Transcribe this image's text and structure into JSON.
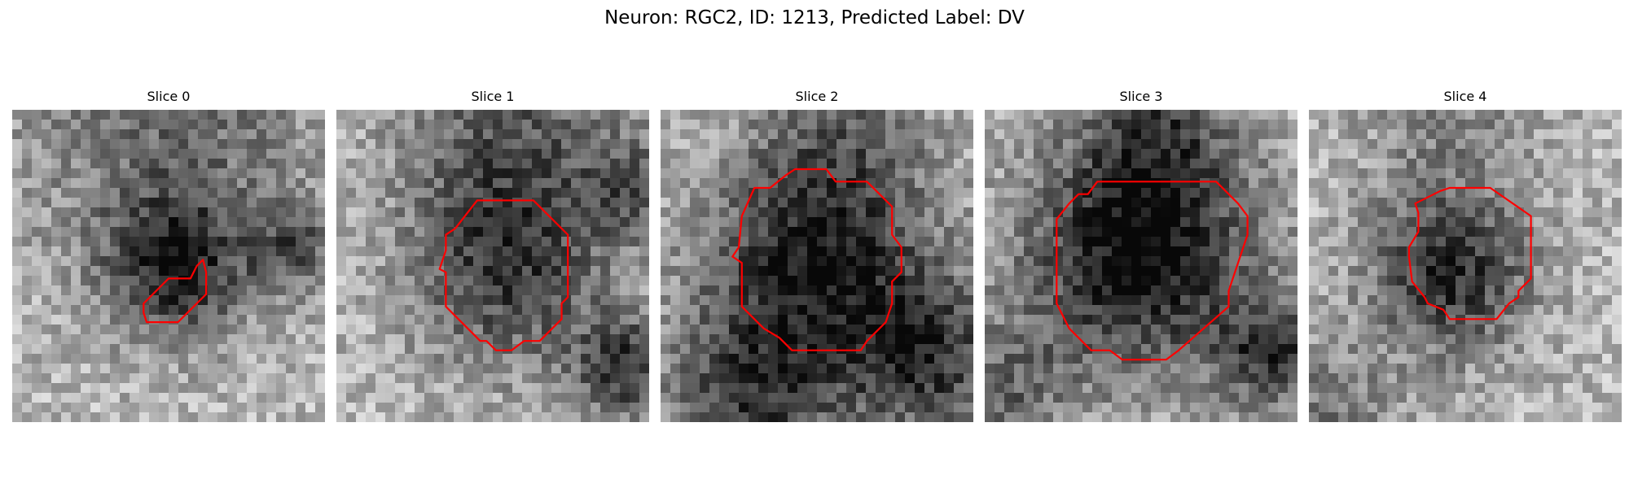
{
  "figure": {
    "suptitle": "Neuron: RGC2, ID: 1213, Predicted Label: DV"
  },
  "panels": [
    {
      "title": "Slice 0",
      "seed": 11,
      "blobs": [
        [
          0.52,
          0.5,
          0.16,
          0.55
        ],
        [
          0.9,
          0.45,
          0.1,
          0.35
        ],
        [
          0.5,
          0.02,
          0.35,
          0.3
        ]
      ],
      "contour": [
        [
          0.42,
          0.62
        ],
        [
          0.5,
          0.54
        ],
        [
          0.57,
          0.54
        ],
        [
          0.59,
          0.5
        ],
        [
          0.61,
          0.48
        ],
        [
          0.62,
          0.52
        ],
        [
          0.62,
          0.59
        ],
        [
          0.53,
          0.68
        ],
        [
          0.43,
          0.68
        ],
        [
          0.42,
          0.65
        ]
      ]
    },
    {
      "title": "Slice 1",
      "seed": 23,
      "blobs": [
        [
          0.55,
          0.52,
          0.22,
          0.45
        ],
        [
          0.55,
          0.08,
          0.25,
          0.35
        ],
        [
          0.93,
          0.83,
          0.12,
          0.5
        ],
        [
          0.95,
          0.25,
          0.12,
          0.3
        ]
      ],
      "contour": [
        [
          0.38,
          0.38
        ],
        [
          0.45,
          0.29
        ],
        [
          0.63,
          0.29
        ],
        [
          0.74,
          0.4
        ],
        [
          0.74,
          0.6
        ],
        [
          0.72,
          0.62
        ],
        [
          0.72,
          0.67
        ],
        [
          0.65,
          0.74
        ],
        [
          0.6,
          0.74
        ],
        [
          0.56,
          0.77
        ],
        [
          0.51,
          0.77
        ],
        [
          0.48,
          0.74
        ],
        [
          0.46,
          0.74
        ],
        [
          0.35,
          0.63
        ],
        [
          0.35,
          0.52
        ],
        [
          0.33,
          0.51
        ],
        [
          0.35,
          0.45
        ],
        [
          0.35,
          0.4
        ]
      ]
    },
    {
      "title": "Slice 2",
      "seed": 37,
      "blobs": [
        [
          0.5,
          0.48,
          0.25,
          0.6
        ],
        [
          0.85,
          0.8,
          0.18,
          0.5
        ],
        [
          0.28,
          0.92,
          0.2,
          0.45
        ],
        [
          0.6,
          0.05,
          0.2,
          0.25
        ]
      ],
      "contour": [
        [
          0.3,
          0.25
        ],
        [
          0.35,
          0.25
        ],
        [
          0.4,
          0.21
        ],
        [
          0.43,
          0.19
        ],
        [
          0.53,
          0.19
        ],
        [
          0.56,
          0.23
        ],
        [
          0.66,
          0.23
        ],
        [
          0.74,
          0.31
        ],
        [
          0.74,
          0.4
        ],
        [
          0.77,
          0.44
        ],
        [
          0.77,
          0.52
        ],
        [
          0.74,
          0.55
        ],
        [
          0.74,
          0.62
        ],
        [
          0.73,
          0.65
        ],
        [
          0.72,
          0.68
        ],
        [
          0.66,
          0.74
        ],
        [
          0.64,
          0.77
        ],
        [
          0.42,
          0.77
        ],
        [
          0.38,
          0.73
        ],
        [
          0.33,
          0.7
        ],
        [
          0.26,
          0.63
        ],
        [
          0.26,
          0.49
        ],
        [
          0.23,
          0.47
        ],
        [
          0.25,
          0.44
        ],
        [
          0.26,
          0.34
        ]
      ]
    },
    {
      "title": "Slice 3",
      "seed": 51,
      "blobs": [
        [
          0.5,
          0.47,
          0.26,
          0.7
        ],
        [
          0.55,
          0.05,
          0.18,
          0.35
        ],
        [
          0.93,
          0.78,
          0.12,
          0.5
        ],
        [
          0.05,
          0.9,
          0.15,
          0.3
        ]
      ],
      "contour": [
        [
          0.23,
          0.35
        ],
        [
          0.27,
          0.3
        ],
        [
          0.3,
          0.27
        ],
        [
          0.33,
          0.27
        ],
        [
          0.36,
          0.23
        ],
        [
          0.74,
          0.23
        ],
        [
          0.81,
          0.3
        ],
        [
          0.84,
          0.34
        ],
        [
          0.84,
          0.4
        ],
        [
          0.78,
          0.58
        ],
        [
          0.78,
          0.63
        ],
        [
          0.62,
          0.77
        ],
        [
          0.58,
          0.8
        ],
        [
          0.44,
          0.8
        ],
        [
          0.4,
          0.77
        ],
        [
          0.34,
          0.77
        ],
        [
          0.27,
          0.7
        ],
        [
          0.23,
          0.62
        ],
        [
          0.23,
          0.6
        ]
      ]
    },
    {
      "title": "Slice 4",
      "seed": 67,
      "blobs": [
        [
          0.45,
          0.53,
          0.18,
          0.55
        ],
        [
          0.45,
          0.05,
          0.2,
          0.2
        ],
        [
          0.05,
          0.95,
          0.15,
          0.25
        ]
      ],
      "contour": [
        [
          0.34,
          0.3
        ],
        [
          0.42,
          0.26
        ],
        [
          0.45,
          0.25
        ],
        [
          0.58,
          0.25
        ],
        [
          0.71,
          0.34
        ],
        [
          0.71,
          0.54
        ],
        [
          0.67,
          0.58
        ],
        [
          0.67,
          0.6
        ],
        [
          0.64,
          0.62
        ],
        [
          0.6,
          0.67
        ],
        [
          0.45,
          0.67
        ],
        [
          0.43,
          0.64
        ],
        [
          0.38,
          0.62
        ],
        [
          0.37,
          0.6
        ],
        [
          0.33,
          0.55
        ],
        [
          0.32,
          0.47
        ],
        [
          0.32,
          0.44
        ],
        [
          0.35,
          0.39
        ],
        [
          0.35,
          0.33
        ]
      ]
    }
  ]
}
